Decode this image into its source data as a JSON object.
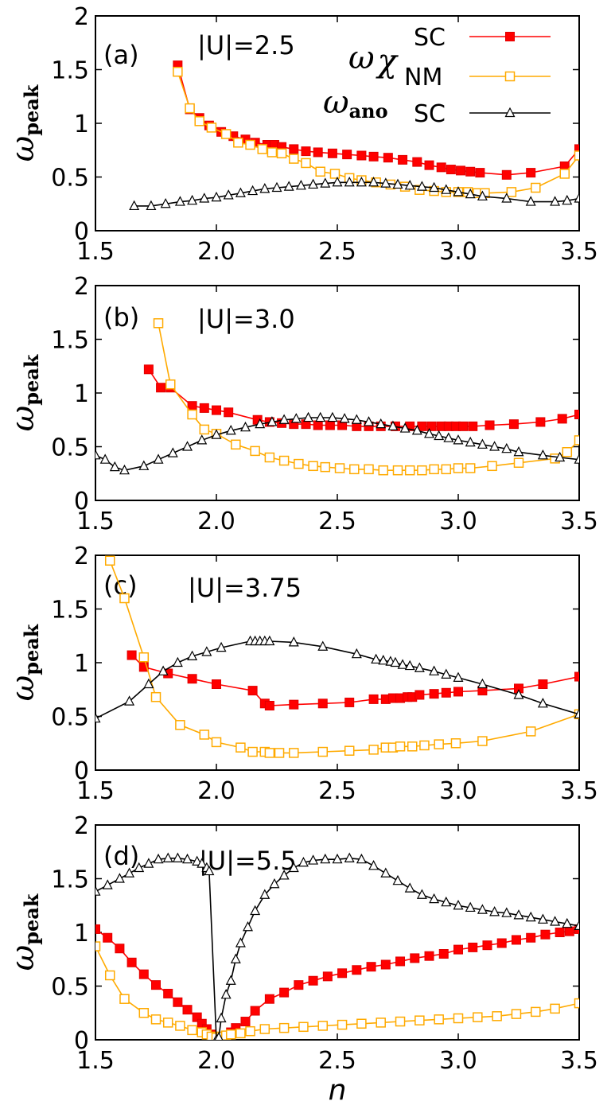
{
  "chart_data": [
    {
      "type": "line",
      "panel": "(a)",
      "label": "|U|=2.5",
      "ylabel": "ω",
      "ylabel_sub": "peak",
      "xlim": [
        1.5,
        3.5
      ],
      "ylim": [
        0,
        2
      ],
      "xticks": [
        "1.5",
        "2.0",
        "2.5",
        "3.0",
        "3.5"
      ],
      "yticks": [
        "0",
        "0.5",
        "1",
        "1.5",
        "2"
      ],
      "legend": {
        "sym1": "ω",
        "sub1": "χ",
        "sym2": "ω",
        "sub2": "ano",
        "entries": [
          "SC",
          "NM",
          "SC"
        ]
      },
      "series": [
        {
          "name": "SC",
          "key": "sc",
          "color": "#ff0000",
          "x": [
            1.84,
            1.89,
            1.93,
            1.97,
            2.02,
            2.07,
            2.12,
            2.16,
            2.21,
            2.24,
            2.27,
            2.32,
            2.37,
            2.42,
            2.48,
            2.54,
            2.6,
            2.65,
            2.71,
            2.77,
            2.83,
            2.88,
            2.93,
            2.97,
            3.01,
            3.05,
            3.09,
            3.2,
            3.3,
            3.44,
            3.5
          ],
          "y": [
            1.54,
            1.13,
            1.05,
            0.98,
            0.92,
            0.88,
            0.85,
            0.82,
            0.8,
            0.8,
            0.78,
            0.76,
            0.74,
            0.73,
            0.72,
            0.71,
            0.7,
            0.69,
            0.68,
            0.66,
            0.64,
            0.61,
            0.59,
            0.57,
            0.56,
            0.55,
            0.54,
            0.52,
            0.54,
            0.6,
            0.76
          ]
        },
        {
          "name": "NM",
          "key": "nm",
          "color": "#ffaa00",
          "x": [
            1.84,
            1.89,
            1.93,
            1.98,
            2.04,
            2.09,
            2.14,
            2.19,
            2.23,
            2.27,
            2.32,
            2.37,
            2.43,
            2.49,
            2.55,
            2.6,
            2.66,
            2.72,
            2.78,
            2.84,
            2.9,
            2.95,
            3.0,
            3.04,
            3.08,
            3.11,
            3.22,
            3.32,
            3.44,
            3.5
          ],
          "y": [
            1.48,
            1.14,
            1.02,
            0.96,
            0.9,
            0.82,
            0.8,
            0.76,
            0.73,
            0.72,
            0.67,
            0.63,
            0.55,
            0.53,
            0.49,
            0.47,
            0.45,
            0.43,
            0.41,
            0.38,
            0.37,
            0.36,
            0.36,
            0.36,
            0.35,
            0.35,
            0.36,
            0.4,
            0.53,
            0.7
          ]
        },
        {
          "name": "SC",
          "key": "ano",
          "color": "#000000",
          "x": [
            1.66,
            1.73,
            1.79,
            1.85,
            1.9,
            1.95,
            2.0,
            2.05,
            2.1,
            2.15,
            2.2,
            2.25,
            2.3,
            2.35,
            2.4,
            2.45,
            2.5,
            2.55,
            2.6,
            2.65,
            2.7,
            2.75,
            2.8,
            2.85,
            2.9,
            2.95,
            3.0,
            3.05,
            3.1,
            3.2,
            3.3,
            3.4,
            3.45,
            3.5
          ],
          "y": [
            0.23,
            0.23,
            0.25,
            0.27,
            0.28,
            0.3,
            0.31,
            0.33,
            0.35,
            0.37,
            0.39,
            0.4,
            0.41,
            0.42,
            0.43,
            0.44,
            0.45,
            0.45,
            0.45,
            0.45,
            0.44,
            0.43,
            0.42,
            0.41,
            0.4,
            0.38,
            0.36,
            0.34,
            0.32,
            0.3,
            0.27,
            0.27,
            0.28,
            0.3
          ]
        }
      ]
    },
    {
      "type": "line",
      "panel": "(b)",
      "label": "|U|=3.0",
      "ylabel": "ω",
      "ylabel_sub": "peak",
      "xlim": [
        1.5,
        3.5
      ],
      "ylim": [
        0,
        2
      ],
      "xticks": [
        "1.5",
        "2.0",
        "2.5",
        "3.0",
        "3.5"
      ],
      "yticks": [
        "0",
        "0.5",
        "1",
        "1.5",
        "2"
      ],
      "series": [
        {
          "name": "SC",
          "key": "sc",
          "color": "#ff0000",
          "x": [
            1.72,
            1.77,
            1.81,
            1.9,
            1.95,
            2.0,
            2.05,
            2.17,
            2.22,
            2.27,
            2.32,
            2.37,
            2.42,
            2.47,
            2.52,
            2.58,
            2.63,
            2.68,
            2.74,
            2.8,
            2.85,
            2.89,
            2.93,
            2.96,
            2.99,
            3.02,
            3.06,
            3.13,
            3.23,
            3.34,
            3.43,
            3.5
          ],
          "y": [
            1.22,
            1.05,
            1.05,
            0.88,
            0.86,
            0.84,
            0.82,
            0.75,
            0.73,
            0.72,
            0.71,
            0.71,
            0.7,
            0.7,
            0.7,
            0.69,
            0.69,
            0.69,
            0.69,
            0.69,
            0.69,
            0.69,
            0.69,
            0.69,
            0.69,
            0.69,
            0.69,
            0.7,
            0.71,
            0.73,
            0.76,
            0.8
          ]
        },
        {
          "name": "NM",
          "key": "nm",
          "color": "#ffaa00",
          "x": [
            1.76,
            1.81,
            1.9,
            1.95,
            2.0,
            2.08,
            2.16,
            2.22,
            2.28,
            2.34,
            2.4,
            2.45,
            2.51,
            2.57,
            2.63,
            2.69,
            2.75,
            2.8,
            2.85,
            2.9,
            2.95,
            3.0,
            3.05,
            3.14,
            3.25,
            3.4,
            3.45,
            3.5
          ],
          "y": [
            1.65,
            1.08,
            0.8,
            0.66,
            0.62,
            0.52,
            0.46,
            0.4,
            0.37,
            0.34,
            0.32,
            0.31,
            0.3,
            0.29,
            0.29,
            0.28,
            0.28,
            0.28,
            0.28,
            0.29,
            0.29,
            0.3,
            0.3,
            0.32,
            0.35,
            0.39,
            0.45,
            0.56
          ]
        },
        {
          "name": "SC",
          "key": "ano",
          "color": "#000000",
          "x": [
            1.5,
            1.54,
            1.58,
            1.62,
            1.7,
            1.76,
            1.82,
            1.88,
            1.94,
            2.0,
            2.06,
            2.12,
            2.18,
            2.23,
            2.28,
            2.33,
            2.38,
            2.43,
            2.48,
            2.53,
            2.58,
            2.63,
            2.68,
            2.73,
            2.78,
            2.83,
            2.88,
            2.92,
            2.96,
            3.0,
            3.05,
            3.1,
            3.15,
            3.2,
            3.25,
            3.35,
            3.42,
            3.5
          ],
          "y": [
            0.42,
            0.38,
            0.31,
            0.28,
            0.32,
            0.38,
            0.44,
            0.5,
            0.56,
            0.61,
            0.65,
            0.68,
            0.71,
            0.73,
            0.75,
            0.76,
            0.77,
            0.77,
            0.77,
            0.76,
            0.75,
            0.73,
            0.71,
            0.69,
            0.67,
            0.65,
            0.62,
            0.6,
            0.58,
            0.56,
            0.54,
            0.52,
            0.5,
            0.48,
            0.45,
            0.42,
            0.4,
            0.38
          ]
        }
      ]
    },
    {
      "type": "line",
      "panel": "(c)",
      "label": "|U|=3.75",
      "ylabel": "ω",
      "ylabel_sub": "peak",
      "xlim": [
        1.5,
        3.5
      ],
      "ylim": [
        0,
        2
      ],
      "xticks": [
        "1.5",
        "2.0",
        "2.5",
        "3.0",
        "3.5"
      ],
      "yticks": [
        "0",
        "0.5",
        "1",
        "1.5",
        "2"
      ],
      "series": [
        {
          "name": "SC",
          "key": "sc",
          "color": "#ff0000",
          "x": [
            1.65,
            1.7,
            1.8,
            1.9,
            2.0,
            2.15,
            2.2,
            2.22,
            2.32,
            2.44,
            2.55,
            2.65,
            2.7,
            2.73,
            2.76,
            2.79,
            2.81,
            2.84,
            2.9,
            2.95,
            3.0,
            3.1,
            3.25,
            3.35,
            3.5
          ],
          "y": [
            1.07,
            0.96,
            0.9,
            0.85,
            0.8,
            0.74,
            0.62,
            0.6,
            0.61,
            0.62,
            0.63,
            0.66,
            0.66,
            0.67,
            0.67,
            0.68,
            0.68,
            0.7,
            0.71,
            0.72,
            0.73,
            0.74,
            0.76,
            0.8,
            0.87
          ]
        },
        {
          "name": "NM",
          "key": "nm",
          "color": "#ffaa00",
          "x": [
            1.56,
            1.62,
            1.7,
            1.75,
            1.85,
            1.95,
            2.0,
            2.1,
            2.15,
            2.2,
            2.22,
            2.26,
            2.32,
            2.44,
            2.55,
            2.65,
            2.7,
            2.73,
            2.76,
            2.81,
            2.86,
            2.92,
            2.99,
            3.1,
            3.3,
            3.5
          ],
          "y": [
            1.95,
            1.6,
            1.05,
            0.68,
            0.42,
            0.33,
            0.26,
            0.21,
            0.17,
            0.17,
            0.16,
            0.16,
            0.16,
            0.17,
            0.18,
            0.19,
            0.21,
            0.21,
            0.22,
            0.22,
            0.23,
            0.24,
            0.25,
            0.27,
            0.36,
            0.52
          ]
        },
        {
          "name": "SC",
          "key": "ano",
          "color": "#000000",
          "x": [
            1.5,
            1.64,
            1.72,
            1.78,
            1.84,
            1.9,
            1.96,
            2.02,
            2.14,
            2.16,
            2.18,
            2.2,
            2.22,
            2.32,
            2.44,
            2.58,
            2.66,
            2.69,
            2.72,
            2.74,
            2.77,
            2.8,
            2.84,
            2.9,
            2.95,
            3.0,
            3.1,
            3.25,
            3.35,
            3.5
          ],
          "y": [
            0.48,
            0.64,
            0.8,
            0.92,
            1.0,
            1.06,
            1.1,
            1.14,
            1.2,
            1.2,
            1.2,
            1.2,
            1.2,
            1.19,
            1.15,
            1.08,
            1.03,
            1.02,
            1.01,
            1.0,
            0.98,
            0.97,
            0.95,
            0.92,
            0.89,
            0.86,
            0.8,
            0.7,
            0.62,
            0.52
          ]
        }
      ]
    },
    {
      "type": "line",
      "panel": "(d)",
      "label": "|U|=5.5",
      "ylabel": "ω",
      "ylabel_sub": "peak",
      "xlabel": "n",
      "xlim": [
        1.5,
        3.5
      ],
      "ylim": [
        0,
        2
      ],
      "xticks": [
        "1.5",
        "2.0",
        "2.5",
        "3.0",
        "3.5"
      ],
      "yticks": [
        "0",
        "0.5",
        "1",
        "1.5",
        "2"
      ],
      "series": [
        {
          "name": "SC",
          "key": "sc",
          "color": "#ff0000",
          "x": [
            1.5,
            1.55,
            1.6,
            1.65,
            1.7,
            1.75,
            1.8,
            1.84,
            1.88,
            1.92,
            1.94,
            1.96,
            1.98,
            1.99,
            2.0,
            2.01,
            2.02,
            2.04,
            2.06,
            2.08,
            2.12,
            2.16,
            2.22,
            2.28,
            2.34,
            2.4,
            2.46,
            2.52,
            2.58,
            2.64,
            2.7,
            2.76,
            2.82,
            2.88,
            2.94,
            3.0,
            3.06,
            3.12,
            3.18,
            3.24,
            3.3,
            3.36,
            3.42,
            3.46,
            3.5
          ],
          "y": [
            1.03,
            0.95,
            0.85,
            0.72,
            0.61,
            0.51,
            0.43,
            0.35,
            0.28,
            0.21,
            0.15,
            0.1,
            0.05,
            0.02,
            0.01,
            0.01,
            0.02,
            0.04,
            0.07,
            0.11,
            0.17,
            0.27,
            0.38,
            0.44,
            0.51,
            0.55,
            0.59,
            0.62,
            0.65,
            0.68,
            0.7,
            0.73,
            0.76,
            0.78,
            0.8,
            0.84,
            0.86,
            0.88,
            0.9,
            0.93,
            0.95,
            0.98,
            1.0,
            1.01,
            1.03
          ]
        },
        {
          "name": "NM",
          "key": "nm",
          "color": "#ffaa00",
          "x": [
            1.5,
            1.56,
            1.62,
            1.7,
            1.75,
            1.8,
            1.85,
            1.9,
            1.94,
            1.96,
            1.98,
            2.0,
            2.02,
            2.04,
            2.06,
            2.1,
            2.14,
            2.2,
            2.28,
            2.36,
            2.44,
            2.52,
            2.6,
            2.68,
            2.76,
            2.84,
            2.92,
            3.0,
            3.08,
            3.16,
            3.24,
            3.32,
            3.4,
            3.5
          ],
          "y": [
            0.87,
            0.6,
            0.38,
            0.25,
            0.19,
            0.16,
            0.13,
            0.09,
            0.07,
            0.05,
            0.03,
            0.02,
            0.03,
            0.04,
            0.05,
            0.06,
            0.08,
            0.1,
            0.11,
            0.12,
            0.13,
            0.14,
            0.15,
            0.16,
            0.17,
            0.18,
            0.19,
            0.2,
            0.21,
            0.22,
            0.24,
            0.26,
            0.29,
            0.34
          ]
        },
        {
          "name": "SC",
          "key": "ano",
          "color": "#000000",
          "x": [
            1.5,
            1.55,
            1.6,
            1.64,
            1.68,
            1.72,
            1.76,
            1.8,
            1.84,
            1.88,
            1.92,
            1.94,
            1.96,
            1.97,
            2.0,
            2.01,
            2.02,
            2.04,
            2.06,
            2.08,
            2.1,
            2.13,
            2.16,
            2.2,
            2.24,
            2.28,
            2.32,
            2.36,
            2.4,
            2.45,
            2.5,
            2.55,
            2.6,
            2.65,
            2.7,
            2.75,
            2.8,
            2.85,
            2.9,
            2.95,
            3.0,
            3.05,
            3.1,
            3.15,
            3.2,
            3.25,
            3.3,
            3.35,
            3.4,
            3.45,
            3.5
          ],
          "y": [
            1.38,
            1.44,
            1.5,
            1.55,
            1.6,
            1.64,
            1.68,
            1.69,
            1.69,
            1.68,
            1.66,
            1.64,
            1.6,
            1.57,
            0.0,
            0.02,
            0.2,
            0.42,
            0.55,
            0.75,
            0.9,
            1.05,
            1.2,
            1.35,
            1.45,
            1.53,
            1.6,
            1.65,
            1.67,
            1.68,
            1.68,
            1.69,
            1.68,
            1.62,
            1.55,
            1.48,
            1.41,
            1.35,
            1.31,
            1.28,
            1.25,
            1.23,
            1.21,
            1.19,
            1.18,
            1.16,
            1.14,
            1.12,
            1.1,
            1.08,
            1.06
          ]
        }
      ]
    }
  ]
}
